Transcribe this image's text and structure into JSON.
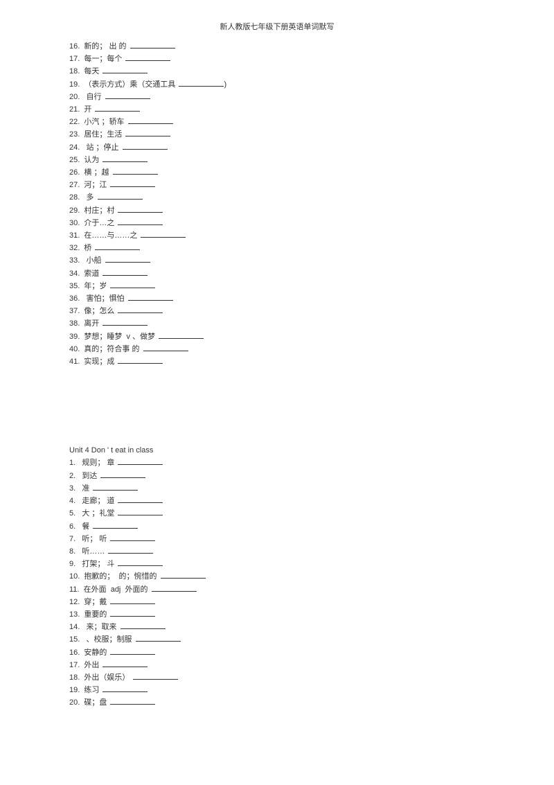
{
  "header": {
    "title": "新人教版七年级下册英语单词默写"
  },
  "section1": {
    "items": [
      {
        "num": "16.",
        "text": "新的； 出 的"
      },
      {
        "num": "17.",
        "text": "每一；每个"
      },
      {
        "num": "18.",
        "text": "每天"
      },
      {
        "num": "19.",
        "text": "（表示方式）乘（交通工具",
        "suffix": ")"
      },
      {
        "num": "20.",
        "text": " 自行"
      },
      {
        "num": "21.",
        "text": "开"
      },
      {
        "num": "22.",
        "text": "小汽 ；轿车"
      },
      {
        "num": "23.",
        "text": "居住；生活"
      },
      {
        "num": "24.",
        "text": " 站 ；停止"
      },
      {
        "num": "25.",
        "text": "认为"
      },
      {
        "num": "26.",
        "text": "横 ；越"
      },
      {
        "num": "27.",
        "text": "河；江"
      },
      {
        "num": "28.",
        "text": " 多"
      },
      {
        "num": "29.",
        "text": "村庄；村"
      },
      {
        "num": "30.",
        "text": "介于…之"
      },
      {
        "num": "31.",
        "text": "在……与……之"
      },
      {
        "num": "32.",
        "text": "桥"
      },
      {
        "num": "33.",
        "text": " 小船"
      },
      {
        "num": "34.",
        "text": "索道"
      },
      {
        "num": "35.",
        "text": "年；岁"
      },
      {
        "num": "36.",
        "text": " 害怕；惧怕"
      },
      {
        "num": "37.",
        "text": "像；怎么"
      },
      {
        "num": "38.",
        "text": "离开"
      },
      {
        "num": "39.",
        "text": "梦想；睡梦  v 、做梦"
      },
      {
        "num": "40.",
        "text": "真的；符合事 的"
      },
      {
        "num": "41.",
        "text": "实现；成"
      }
    ]
  },
  "section2": {
    "title": "Unit 4 Don  ' t eat in  class",
    "items": [
      {
        "num": "1.",
        "text": "  规则； 章"
      },
      {
        "num": "2.",
        "text": "  到达"
      },
      {
        "num": "3.",
        "text": "  准"
      },
      {
        "num": "4.",
        "text": "  走廊； 道"
      },
      {
        "num": "5.",
        "text": "  大 ；礼堂"
      },
      {
        "num": "6.",
        "text": "  餐"
      },
      {
        "num": "7.",
        "text": "  听； 听"
      },
      {
        "num": "8.",
        "text": "  听……"
      },
      {
        "num": "9.",
        "text": "  打架； 斗"
      },
      {
        "num": "10.",
        "text": " 抱歉的；  的；惋惜的"
      },
      {
        "num": "11.",
        "text": " 在外面  adj  外面的"
      },
      {
        "num": "12.",
        "text": " 穿；戴"
      },
      {
        "num": "13.",
        "text": " 重要的"
      },
      {
        "num": "14.",
        "text": "  来；取来"
      },
      {
        "num": "15.",
        "text": "  、校服；制服"
      },
      {
        "num": "16.",
        "text": " 安静的"
      },
      {
        "num": "17.",
        "text": " 外出"
      },
      {
        "num": "18.",
        "text": " 外出（娱乐）"
      },
      {
        "num": "19.",
        "text": " 练习"
      },
      {
        "num": "20.",
        "text": " 碟；盘"
      }
    ]
  }
}
